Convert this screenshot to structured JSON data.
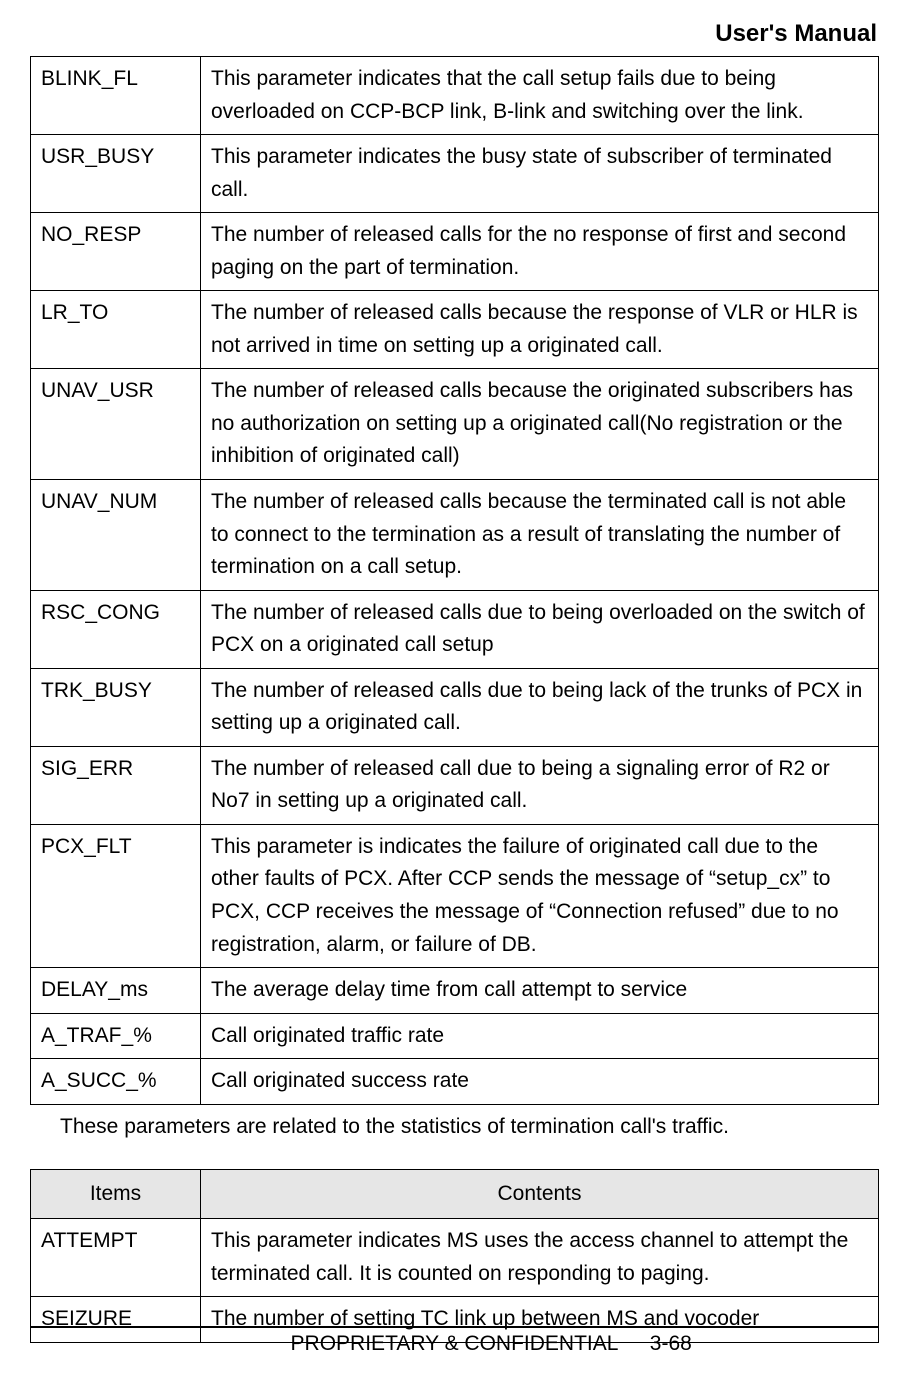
{
  "header": {
    "title": "User's Manual"
  },
  "table1": {
    "rows": [
      {
        "param": "BLINK_FL",
        "desc": "This parameter indicates that the call setup fails due to being overloaded on CCP-BCP link, B-link and switching over the link.",
        "tight": false
      },
      {
        "param": "USR_BUSY",
        "desc": "This parameter indicates the busy state of subscriber of terminated call.",
        "tight": false
      },
      {
        "param": "NO_RESP",
        "desc": "The number of released calls for the no response of first and second paging on the part of termination.",
        "tight": false
      },
      {
        "param": "LR_TO",
        "desc": "The number of released calls because the response of VLR or HLR is not arrived in time on setting up a originated call.",
        "tight": false
      },
      {
        "param": "UNAV_USR",
        "desc": "The number of released calls because the originated subscribers has no authorization on setting up a originated call(No registration or the inhibition of originated call)",
        "tight": false
      },
      {
        "param": "UNAV_NUM",
        "desc": "The number of released calls because the terminated call is not able to connect to the termination as a result of translating the number of termination on a call setup.",
        "tight": false
      },
      {
        "param": "RSC_CONG",
        "desc": "The number of released calls due to being overloaded on the switch of PCX on a originated call setup",
        "tight": false
      },
      {
        "param": "TRK_BUSY",
        "desc": "The number of released calls due to being lack of the trunks of PCX in setting up a originated call.",
        "tight": false
      },
      {
        "param": "SIG_ERR",
        "desc": "The number of released call due to being a signaling error of R2 or No7 in setting up a originated call.",
        "tight": false
      },
      {
        "param": "PCX_FLT",
        "desc": "This parameter is indicates the failure of originated call due to the other faults of PCX. After CCP sends the message of “setup_cx” to PCX, CCP receives the message of “Connection refused” due to no registration, alarm, or failure of DB.",
        "tight": false
      },
      {
        "param": "DELAY_ms",
        "desc": "The average delay time from call attempt to service",
        "tight": true
      },
      {
        "param": "A_TRAF_%",
        "desc": "Call originated traffic rate",
        "tight": true
      },
      {
        "param": "A_SUCC_%",
        "desc": "Call originated success rate",
        "tight": true
      }
    ]
  },
  "note": "These parameters are related to the statistics of termination call's traffic.",
  "table2": {
    "headers": {
      "c1": "Items",
      "c2": "Contents"
    },
    "rows": [
      {
        "param": "ATTEMPT",
        "desc": "This parameter indicates MS uses the access channel to attempt the terminated call. It is counted on responding to paging."
      },
      {
        "param": "SEIZURE",
        "desc": "The number of setting TC link up between MS and vocoder"
      }
    ]
  },
  "footer": {
    "label": "PROPRIETARY & CONFIDENTIAL",
    "page": "3-68"
  },
  "style": {
    "page_bg": "#ffffff",
    "text_color": "#000000",
    "border_color": "#000000",
    "header_fontsize": 24,
    "cell_fontsize": 21,
    "th_bg": "#e6e6e6"
  }
}
